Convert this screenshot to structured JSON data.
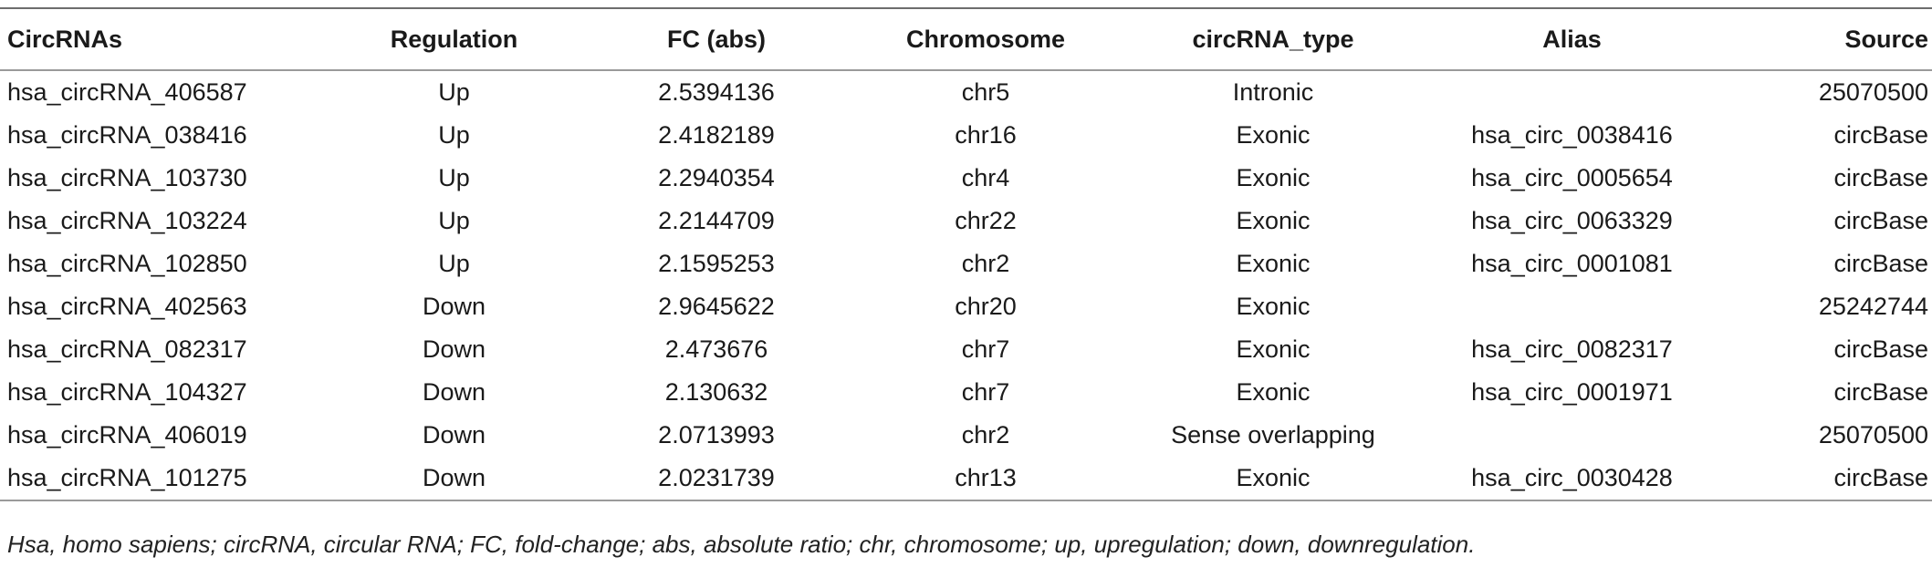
{
  "table": {
    "headers": [
      "CircRNAs",
      "Regulation",
      "FC (abs)",
      "Chromosome",
      "circRNA_type",
      "Alias",
      "Source"
    ],
    "rows": [
      [
        "hsa_circRNA_406587",
        "Up",
        "2.5394136",
        "chr5",
        "Intronic",
        "",
        "25070500"
      ],
      [
        "hsa_circRNA_038416",
        "Up",
        "2.4182189",
        "chr16",
        "Exonic",
        "hsa_circ_0038416",
        "circBase"
      ],
      [
        "hsa_circRNA_103730",
        "Up",
        "2.2940354",
        "chr4",
        "Exonic",
        "hsa_circ_0005654",
        "circBase"
      ],
      [
        "hsa_circRNA_103224",
        "Up",
        "2.2144709",
        "chr22",
        "Exonic",
        "hsa_circ_0063329",
        "circBase"
      ],
      [
        "hsa_circRNA_102850",
        "Up",
        "2.1595253",
        "chr2",
        "Exonic",
        "hsa_circ_0001081",
        "circBase"
      ],
      [
        "hsa_circRNA_402563",
        "Down",
        "2.9645622",
        "chr20",
        "Exonic",
        "",
        "25242744"
      ],
      [
        "hsa_circRNA_082317",
        "Down",
        "2.473676",
        "chr7",
        "Exonic",
        "hsa_circ_0082317",
        "circBase"
      ],
      [
        "hsa_circRNA_104327",
        "Down",
        "2.130632",
        "chr7",
        "Exonic",
        "hsa_circ_0001971",
        "circBase"
      ],
      [
        "hsa_circRNA_406019",
        "Down",
        "2.0713993",
        "chr2",
        "Sense overlapping",
        "",
        "25070500"
      ],
      [
        "hsa_circRNA_101275",
        "Down",
        "2.0231739",
        "chr13",
        "Exonic",
        "hsa_circ_0030428",
        "circBase"
      ]
    ]
  },
  "footnote": "Hsa, homo sapiens; circRNA, circular RNA; FC, fold-change; abs, absolute ratio; chr, chromosome; up, upregulation; down, downregulation."
}
